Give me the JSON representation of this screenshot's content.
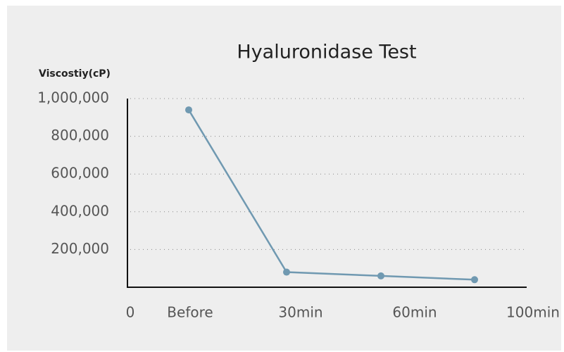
{
  "chart_data": {
    "type": "line",
    "title": "Hyaluronidase Test",
    "y_label": "Viscostiy(cP)",
    "categories": [
      "0",
      "Before",
      "30min",
      "60min",
      "100min"
    ],
    "series": [
      {
        "name": "Viscosity",
        "color": "#7099b1",
        "values": [
          null,
          940000,
          80000,
          60000,
          40000
        ]
      }
    ],
    "ylim": [
      0,
      1000000
    ],
    "yticks": [
      {
        "value": 200000,
        "label": "200,000"
      },
      {
        "value": 400000,
        "label": "400,000"
      },
      {
        "value": 600000,
        "label": "600,000"
      },
      {
        "value": 800000,
        "label": "800,000"
      },
      {
        "value": 1000000,
        "label": "1,000,000"
      }
    ],
    "grid": true
  }
}
